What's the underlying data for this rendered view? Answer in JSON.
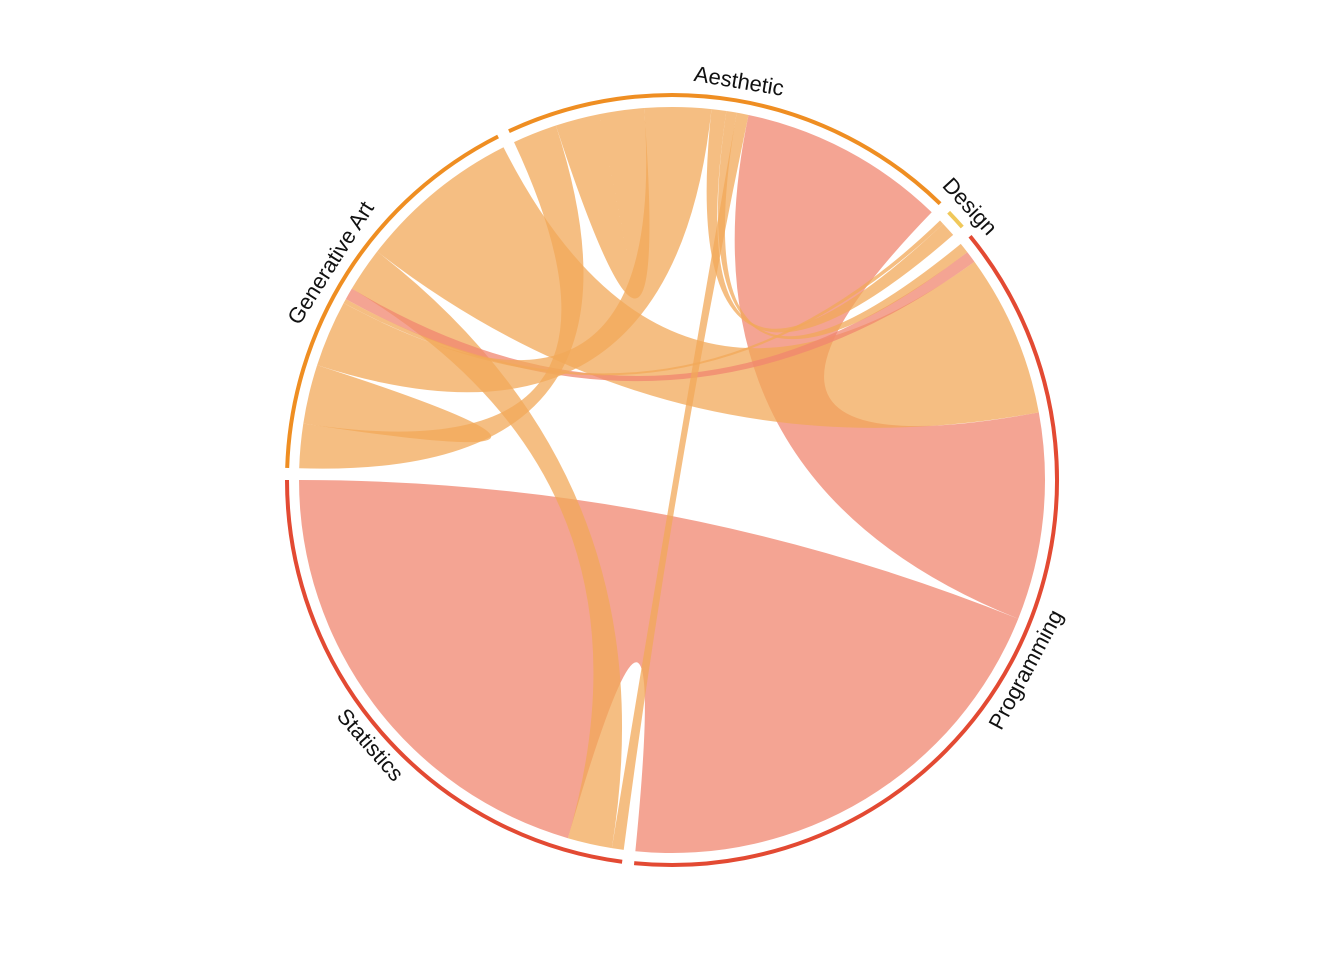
{
  "chart_data": {
    "type": "chord",
    "title": "",
    "sectors": [
      {
        "name": "Statistics",
        "color": "#e34a33"
      },
      {
        "name": "Programming",
        "color": "#e34a33"
      },
      {
        "name": "Design",
        "color": "#f0c85a"
      },
      {
        "name": "Aesthetic",
        "color": "#ef8e22"
      },
      {
        "name": "Generative Art",
        "color": "#ef8e22"
      }
    ],
    "ribbon_colors": {
      "Statistics": "#f0866f",
      "Programming": "#f0866f",
      "Design": "#f3d77a",
      "Aesthetic": "#f2a858",
      "Generative Art": "#f2a858"
    },
    "links": [
      {
        "source": "Statistics",
        "target": "Programming",
        "value": 32
      },
      {
        "source": "Programming",
        "target": "Aesthetic",
        "value": 14
      },
      {
        "source": "Generative Art",
        "target": "Programming",
        "value": 11
      },
      {
        "source": "Generative Art",
        "target": "Statistics",
        "value": 3
      },
      {
        "source": "Programming",
        "target": "Generative Art",
        "value": 0.8
      },
      {
        "source": "Aesthetic",
        "target": "Statistics",
        "value": 0.8
      },
      {
        "source": "Aesthetic",
        "target": "Programming",
        "value": 0.7
      },
      {
        "source": "Aesthetic",
        "target": "Design",
        "value": 1
      },
      {
        "source": "Generative Art",
        "target": "Design",
        "value": 0.3
      },
      {
        "source": "Aesthetic",
        "target": "Generative Art",
        "value": 4.5
      },
      {
        "source": "Aesthetic",
        "target": "Aesthetic",
        "value": 3
      },
      {
        "source": "Generative Art",
        "target": "Generative Art",
        "value": 2
      },
      {
        "source": "Aesthetic",
        "target": "Generative Art",
        "value": 3
      }
    ]
  }
}
